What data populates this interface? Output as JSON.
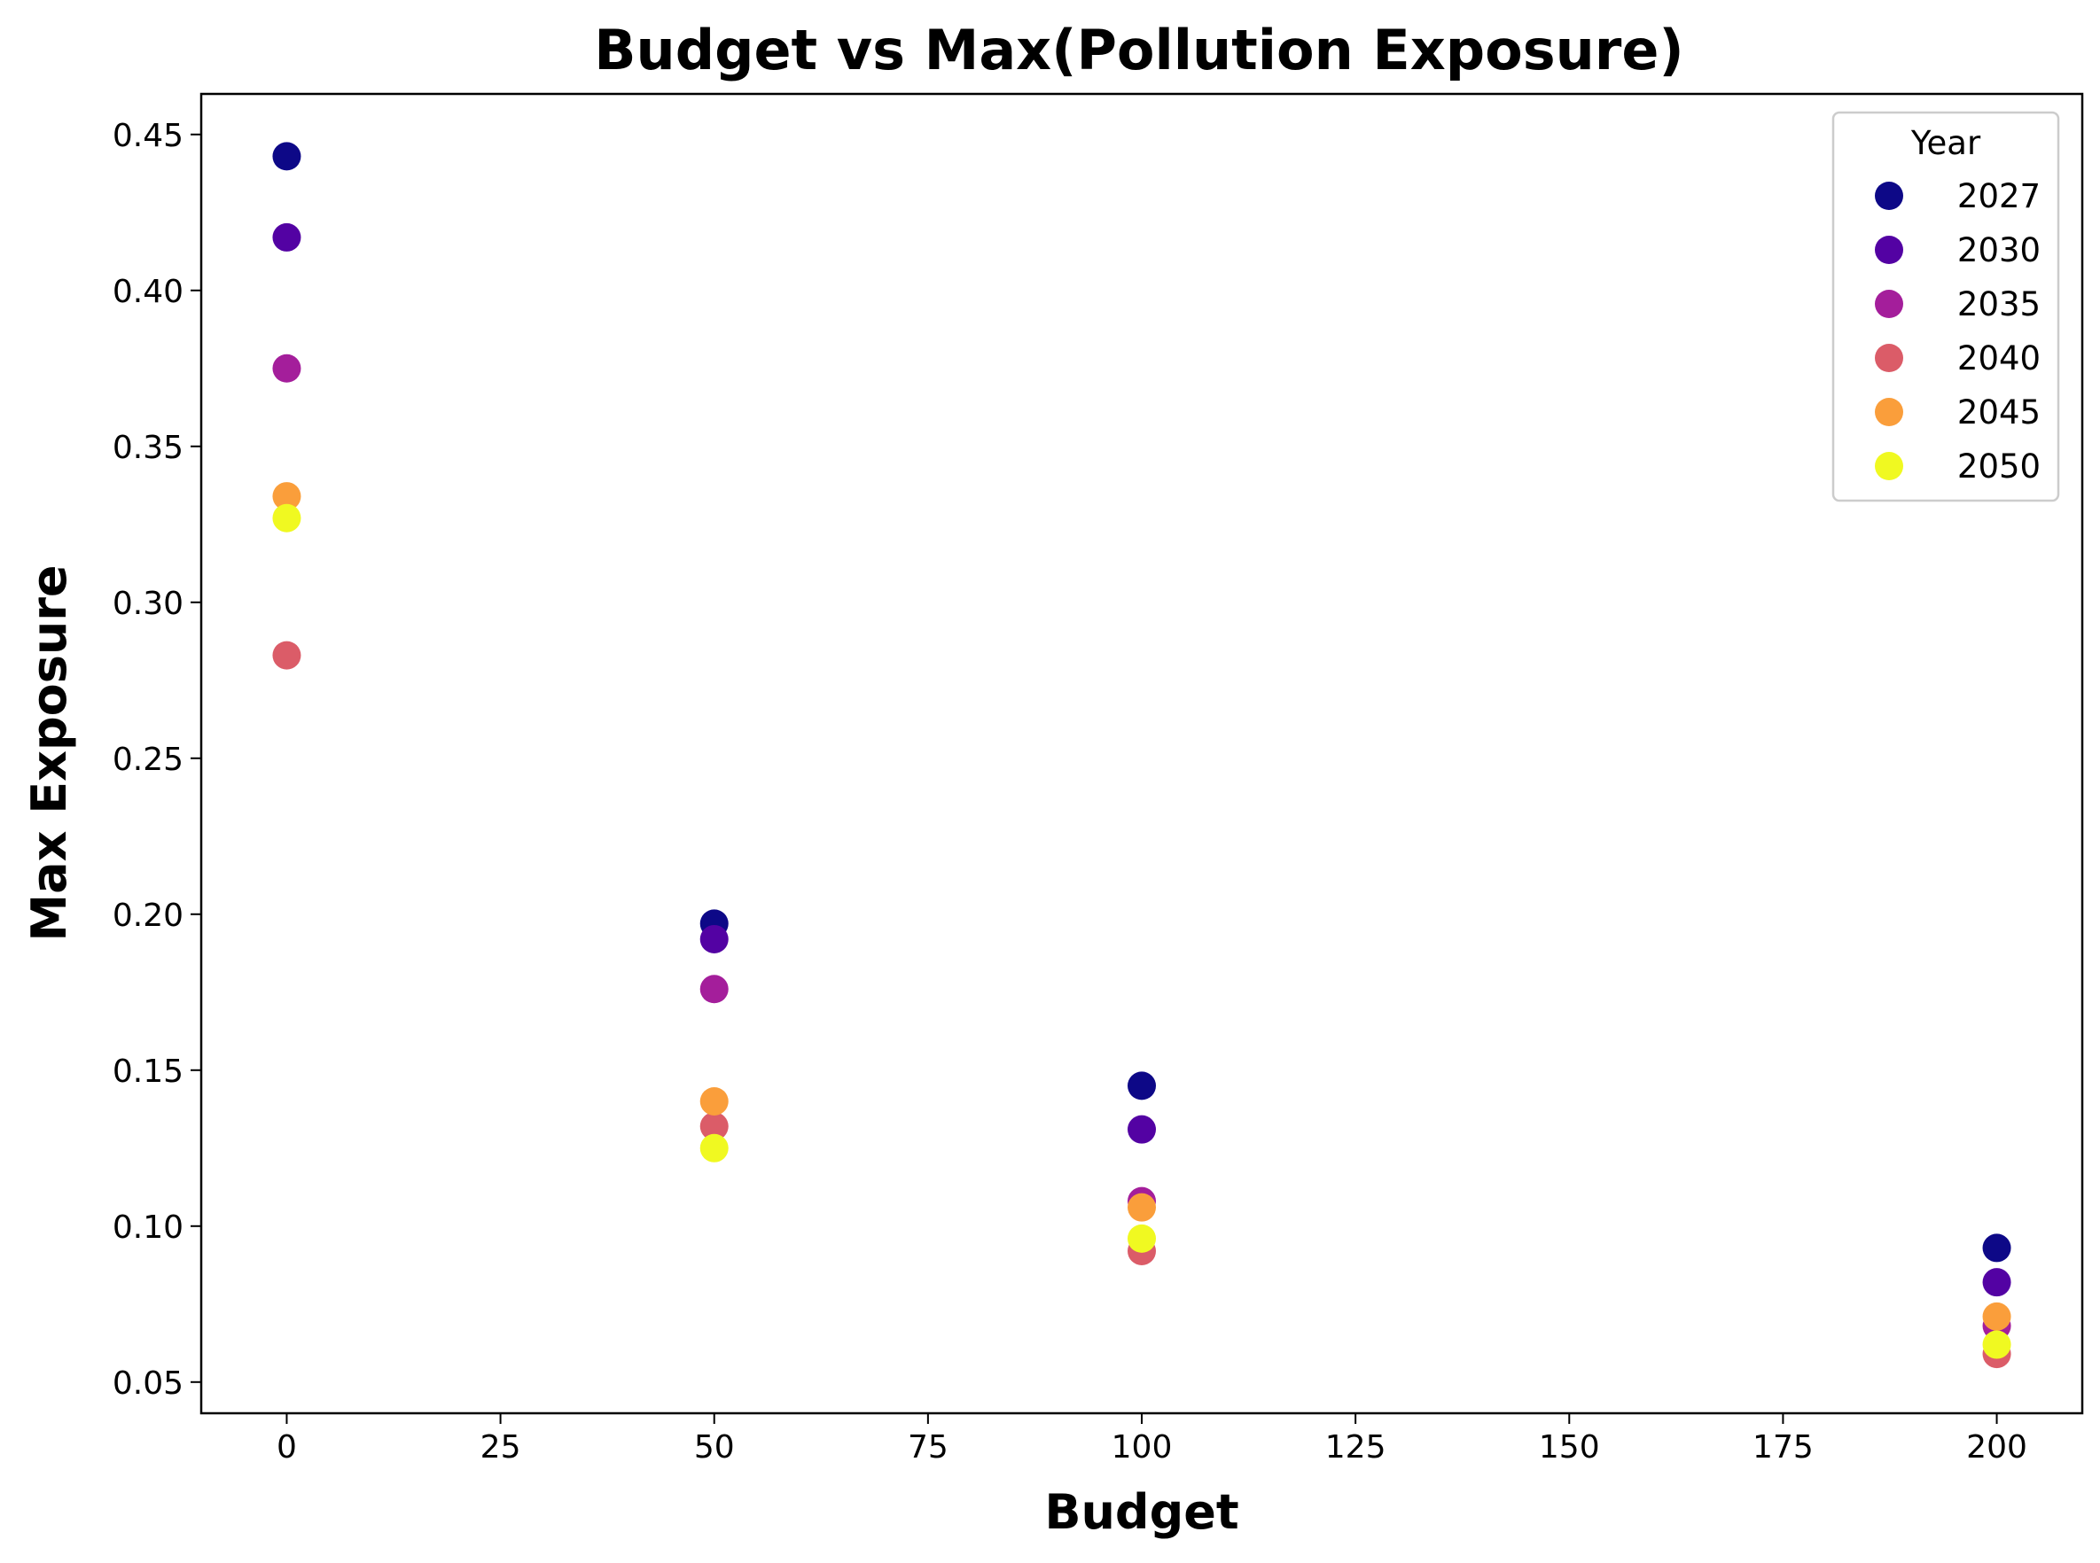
{
  "chart_data": {
    "type": "scatter",
    "title": "Budget vs Max(Pollution Exposure)",
    "xlabel": "Budget",
    "ylabel": "Max Exposure",
    "xlim": [
      -10,
      210
    ],
    "ylim": [
      0.04,
      0.463
    ],
    "xticks": [
      0,
      25,
      50,
      75,
      100,
      125,
      150,
      175,
      200
    ],
    "yticks": [
      0.05,
      0.1,
      0.15,
      0.2,
      0.25,
      0.3,
      0.35,
      0.4,
      0.45
    ],
    "grid": false,
    "legend": {
      "title": "Year",
      "placement": "top-right"
    },
    "series": [
      {
        "name": "2027",
        "color": "#0d0887",
        "x": [
          0,
          50,
          100,
          200
        ],
        "y": [
          0.443,
          0.197,
          0.145,
          0.093
        ]
      },
      {
        "name": "2030",
        "color": "#5302a3",
        "x": [
          0,
          50,
          100,
          200
        ],
        "y": [
          0.417,
          0.192,
          0.131,
          0.082
        ]
      },
      {
        "name": "2035",
        "color": "#a41e9b",
        "x": [
          0,
          50,
          100,
          200
        ],
        "y": [
          0.375,
          0.176,
          0.108,
          0.068
        ]
      },
      {
        "name": "2040",
        "color": "#db5c68",
        "x": [
          0,
          50,
          100,
          200
        ],
        "y": [
          0.283,
          0.132,
          0.092,
          0.059
        ]
      },
      {
        "name": "2045",
        "color": "#fa9e3b",
        "x": [
          0,
          50,
          100,
          200
        ],
        "y": [
          0.334,
          0.14,
          0.106,
          0.071
        ]
      },
      {
        "name": "2050",
        "color": "#f0f921",
        "x": [
          0,
          50,
          100,
          200
        ],
        "y": [
          0.327,
          0.125,
          0.096,
          0.062
        ]
      }
    ]
  }
}
